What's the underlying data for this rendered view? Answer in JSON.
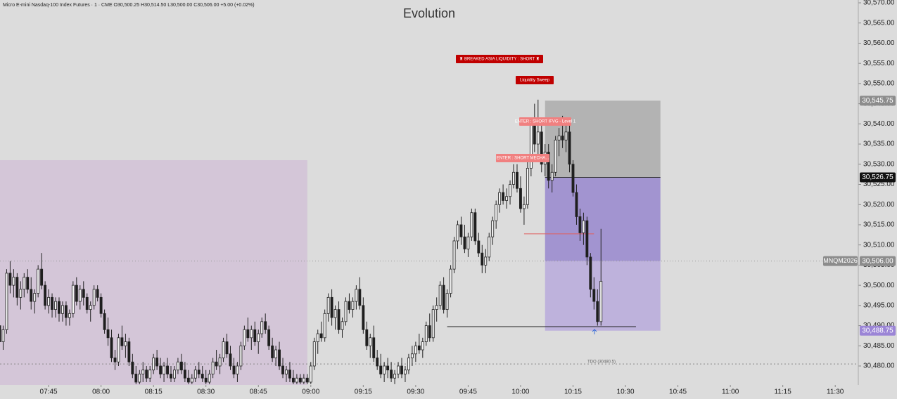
{
  "header": "Micro E-mini Nasdaq-100 Index Futures · 1 · CME  O30,500.25  H30,514.50  L30,500.00  C30,506.00  +5.00 (+0.02%)",
  "chart_data": {
    "type": "candlestick",
    "title": "Evolution",
    "xlim": [
      451.1,
      696.6
    ],
    "xticks": [
      {
        "value": 465,
        "label": "07:45"
      },
      {
        "value": 480,
        "label": "08:00"
      },
      {
        "value": 495,
        "label": "08:15"
      },
      {
        "value": 510,
        "label": "08:30"
      },
      {
        "value": 525,
        "label": "08:45"
      },
      {
        "value": 540,
        "label": "09:00"
      },
      {
        "value": 555,
        "label": "09:15"
      },
      {
        "value": 570,
        "label": "09:30"
      },
      {
        "value": 585,
        "label": "09:45"
      },
      {
        "value": 600,
        "label": "10:00"
      },
      {
        "value": 615,
        "label": "10:15"
      },
      {
        "value": 630,
        "label": "10:30"
      },
      {
        "value": 645,
        "label": "10:45"
      },
      {
        "value": 660,
        "label": "11:00"
      },
      {
        "value": 675,
        "label": "11:15"
      },
      {
        "value": 690,
        "label": "11:30"
      }
    ],
    "ylim": [
      30475.3,
      30570.7
    ],
    "yticks": [
      {
        "value": 30480,
        "label": "30,480.00"
      },
      {
        "value": 30485,
        "label": "30,485.00"
      },
      {
        "value": 30490,
        "label": "30,490.00"
      },
      {
        "value": 30495,
        "label": "30,495.00"
      },
      {
        "value": 30500,
        "label": "30,500.00"
      },
      {
        "value": 30505,
        "label": "30,505.00"
      },
      {
        "value": 30510,
        "label": "30,510.00"
      },
      {
        "value": 30515,
        "label": "30,515.00"
      },
      {
        "value": 30520,
        "label": "30,520.00"
      },
      {
        "value": 30525,
        "label": "30,525.00"
      },
      {
        "value": 30530,
        "label": "30,530.00"
      },
      {
        "value": 30535,
        "label": "30,535.00"
      },
      {
        "value": 30540,
        "label": "30,540.00"
      },
      {
        "value": 30545,
        "label": "30,545.00"
      },
      {
        "value": 30550,
        "label": "30,550.00"
      },
      {
        "value": 30555,
        "label": "30,555.00"
      },
      {
        "value": 30560,
        "label": "30,560.00"
      },
      {
        "value": 30565,
        "label": "30,565.00"
      },
      {
        "value": 30570,
        "label": "30,570.00"
      }
    ],
    "up_color": "#f4f4f4",
    "down_color": "#1e1e1e",
    "x": [
      451,
      452,
      453,
      454,
      455,
      456,
      457,
      458,
      459,
      460,
      461,
      462,
      463,
      464,
      465,
      466,
      467,
      468,
      469,
      470,
      471,
      472,
      473,
      474,
      475,
      476,
      477,
      478,
      479,
      480,
      481,
      482,
      483,
      484,
      485,
      486,
      487,
      488,
      489,
      490,
      491,
      492,
      493,
      494,
      495,
      496,
      497,
      498,
      499,
      500,
      501,
      502,
      503,
      504,
      505,
      506,
      507,
      508,
      509,
      510,
      511,
      512,
      513,
      514,
      515,
      516,
      517,
      518,
      519,
      520,
      521,
      522,
      523,
      524,
      525,
      526,
      527,
      528,
      529,
      530,
      531,
      532,
      533,
      534,
      535,
      536,
      537,
      538,
      539,
      540,
      541,
      542,
      543,
      544,
      545,
      546,
      547,
      548,
      549,
      550,
      551,
      552,
      553,
      554,
      555,
      556,
      557,
      558,
      559,
      560,
      561,
      562,
      563,
      564,
      565,
      566,
      567,
      568,
      569,
      570,
      571,
      572,
      573,
      574,
      575,
      576,
      577,
      578,
      579,
      580,
      581,
      582,
      583,
      584,
      585,
      586,
      587,
      588,
      589,
      590,
      591,
      592,
      593,
      594,
      595,
      596,
      597,
      598,
      599,
      600,
      601,
      602,
      603,
      604,
      605,
      606,
      607,
      608,
      609,
      610,
      611,
      612,
      613,
      614,
      615,
      616,
      617,
      618,
      619,
      620,
      621,
      622,
      623
    ],
    "ohlc": [
      [
        30490,
        30492,
        30485,
        30486
      ],
      [
        30486,
        30490,
        30484,
        30489
      ],
      [
        30489,
        30504,
        30488,
        30503
      ],
      [
        30503,
        30506,
        30498,
        30500
      ],
      [
        30500,
        30504,
        30497,
        30502
      ],
      [
        30502,
        30503,
        30495,
        30497
      ],
      [
        30497,
        30501,
        30494,
        30499
      ],
      [
        30499,
        30503,
        30497,
        30502
      ],
      [
        30502,
        30504,
        30498,
        30499
      ],
      [
        30499,
        30502,
        30494,
        30496
      ],
      [
        30496,
        30499,
        30493,
        30498
      ],
      [
        30498,
        30505,
        30497,
        30504
      ],
      [
        30504,
        30508,
        30499,
        30500
      ],
      [
        30500,
        30501,
        30494,
        30495
      ],
      [
        30495,
        30499,
        30493,
        30497
      ],
      [
        30497,
        30498,
        30492,
        30494
      ],
      [
        30494,
        30497,
        30492,
        30496
      ],
      [
        30496,
        30497,
        30491,
        30493
      ],
      [
        30493,
        30496,
        30491,
        30495
      ],
      [
        30495,
        30496,
        30490,
        30492
      ],
      [
        30492,
        30494,
        30490,
        30493
      ],
      [
        30493,
        30501,
        30492,
        30500
      ],
      [
        30500,
        30502,
        30495,
        30496
      ],
      [
        30496,
        30500,
        30494,
        30499
      ],
      [
        30499,
        30501,
        30495,
        30497
      ],
      [
        30497,
        30498,
        30493,
        30494
      ],
      [
        30494,
        30496,
        30491,
        30495
      ],
      [
        30495,
        30500,
        30494,
        30499
      ],
      [
        30499,
        30500,
        30496,
        30497
      ],
      [
        30497,
        30498,
        30492,
        30493
      ],
      [
        30493,
        30494,
        30488,
        30489
      ],
      [
        30489,
        30492,
        30485,
        30487
      ],
      [
        30487,
        30489,
        30481,
        30482
      ],
      [
        30482,
        30484,
        30479,
        30481
      ],
      [
        30481,
        30488,
        30480,
        30487
      ],
      [
        30487,
        30490,
        30484,
        30485
      ],
      [
        30485,
        30488,
        30482,
        30486
      ],
      [
        30486,
        30487,
        30480,
        30481
      ],
      [
        30481,
        30483,
        30477,
        30478
      ],
      [
        30478,
        30480,
        30475.5,
        30476
      ],
      [
        30476,
        30479,
        30475.5,
        30478
      ],
      [
        30478,
        30481,
        30476,
        30479
      ],
      [
        30479,
        30480,
        30476,
        30477
      ],
      [
        30477,
        30480,
        30476,
        30479
      ],
      [
        30479,
        30483,
        30478,
        30482
      ],
      [
        30482,
        30484,
        30479,
        30480
      ],
      [
        30480,
        30482,
        30477,
        30478
      ],
      [
        30478,
        30481,
        30476,
        30480
      ],
      [
        30480,
        30482,
        30477,
        30478
      ],
      [
        30478,
        30480,
        30476,
        30477
      ],
      [
        30477,
        30480,
        30476,
        30479
      ],
      [
        30479,
        30482,
        30478,
        30481
      ],
      [
        30481,
        30483,
        30478,
        30479
      ],
      [
        30479,
        30481,
        30476,
        30477
      ],
      [
        30477,
        30479,
        30475.5,
        30476
      ],
      [
        30476,
        30478,
        30475.5,
        30477
      ],
      [
        30477,
        30480,
        30476,
        30479
      ],
      [
        30479,
        30481,
        30477,
        30478
      ],
      [
        30478,
        30480,
        30476,
        30477
      ],
      [
        30477,
        30479,
        30475.5,
        30476
      ],
      [
        30476,
        30479,
        30475.5,
        30478
      ],
      [
        30478,
        30482,
        30477,
        30481
      ],
      [
        30481,
        30484,
        30479,
        30480
      ],
      [
        30480,
        30483,
        30478,
        30482
      ],
      [
        30482,
        30487,
        30481,
        30486
      ],
      [
        30486,
        30488,
        30482,
        30483
      ],
      [
        30483,
        30485,
        30479,
        30480
      ],
      [
        30480,
        30482,
        30477,
        30478
      ],
      [
        30478,
        30481,
        30476,
        30480
      ],
      [
        30480,
        30486,
        30479,
        30485
      ],
      [
        30485,
        30490,
        30484,
        30489
      ],
      [
        30489,
        30492,
        30486,
        30487
      ],
      [
        30487,
        30490,
        30484,
        30489
      ],
      [
        30489,
        30491,
        30485,
        30486
      ],
      [
        30486,
        30489,
        30483,
        30488
      ],
      [
        30488,
        30492,
        30487,
        30491
      ],
      [
        30491,
        30493,
        30488,
        30489
      ],
      [
        30489,
        30490,
        30484,
        30485
      ],
      [
        30485,
        30487,
        30481,
        30482
      ],
      [
        30482,
        30485,
        30480,
        30484
      ],
      [
        30484,
        30486,
        30479,
        30480
      ],
      [
        30480,
        30482,
        30477,
        30478
      ],
      [
        30478,
        30480,
        30476,
        30479
      ],
      [
        30479,
        30481,
        30476,
        30477
      ],
      [
        30477,
        30479,
        30475.5,
        30476
      ],
      [
        30476,
        30478,
        30475.5,
        30477
      ],
      [
        30477,
        30478,
        30475.5,
        30476
      ],
      [
        30476,
        30478,
        30475.5,
        30477
      ],
      [
        30477,
        30478,
        30475.5,
        30476
      ],
      [
        30476,
        30481,
        30475.5,
        30480
      ],
      [
        30480,
        30487,
        30479,
        30486
      ],
      [
        30486,
        30489,
        30483,
        30488
      ],
      [
        30488,
        30491,
        30486,
        30487
      ],
      [
        30487,
        30494,
        30486,
        30493
      ],
      [
        30493,
        30498,
        30491,
        30497
      ],
      [
        30497,
        30499,
        30490,
        30492
      ],
      [
        30492,
        30495,
        30489,
        30494
      ],
      [
        30494,
        30496,
        30488,
        30489
      ],
      [
        30489,
        30492,
        30487,
        30491
      ],
      [
        30491,
        30497,
        30490,
        30496
      ],
      [
        30496,
        30498,
        30493,
        30494
      ],
      [
        30494,
        30497,
        30492,
        30496
      ],
      [
        30496,
        30500,
        30494,
        30499
      ],
      [
        30499,
        30502,
        30494,
        30495
      ],
      [
        30495,
        30497,
        30488,
        30489
      ],
      [
        30489,
        30491,
        30484,
        30485
      ],
      [
        30485,
        30488,
        30482,
        30487
      ],
      [
        30487,
        30490,
        30481,
        30482
      ],
      [
        30482,
        30484,
        30479,
        30480
      ],
      [
        30480,
        30483,
        30477,
        30478
      ],
      [
        30478,
        30481,
        30476,
        30480
      ],
      [
        30480,
        30482,
        30477,
        30479
      ],
      [
        30479,
        30481,
        30476,
        30477
      ],
      [
        30477,
        30479,
        30475.5,
        30478
      ],
      [
        30478,
        30481,
        30477,
        30480
      ],
      [
        30480,
        30482,
        30477,
        30478
      ],
      [
        30478,
        30480,
        30476,
        30479
      ],
      [
        30479,
        30483,
        30478,
        30482
      ],
      [
        30482,
        30485,
        30480,
        30483
      ],
      [
        30483,
        30486,
        30481,
        30485
      ],
      [
        30485,
        30488,
        30483,
        30484
      ],
      [
        30484,
        30487,
        30482,
        30486
      ],
      [
        30486,
        30491,
        30485,
        30490
      ],
      [
        30490,
        30493,
        30486,
        30487
      ],
      [
        30487,
        30495,
        30486,
        30494
      ],
      [
        30494,
        30497,
        30491,
        30495
      ],
      [
        30495,
        30501,
        30494,
        30500
      ],
      [
        30500,
        30502,
        30493,
        30494
      ],
      [
        30494,
        30499,
        30492,
        30498
      ],
      [
        30498,
        30505,
        30497,
        30504
      ],
      [
        30504,
        30512,
        30503,
        30511
      ],
      [
        30511,
        30516,
        30509,
        30515
      ],
      [
        30515,
        30517,
        30510,
        30512
      ],
      [
        30512,
        30515,
        30508,
        30509
      ],
      [
        30509,
        30513,
        30507,
        30512
      ],
      [
        30512,
        30519,
        30511,
        30518
      ],
      [
        30518,
        30519,
        30510,
        30511
      ],
      [
        30511,
        30513,
        30507,
        30508
      ],
      [
        30508,
        30510,
        30503,
        30505
      ],
      [
        30505,
        30509,
        30503,
        30507
      ],
      [
        30507,
        30513,
        30506,
        30512
      ],
      [
        30512,
        30517,
        30510,
        30516
      ],
      [
        30516,
        30521,
        30514,
        30520
      ],
      [
        30520,
        30524,
        30518,
        30523
      ],
      [
        30523,
        30525,
        30520,
        30521
      ],
      [
        30521,
        30524,
        30519,
        30522
      ],
      [
        30522,
        30526,
        30520,
        30525
      ],
      [
        30525,
        30530,
        30524,
        30528
      ],
      [
        30528,
        30530,
        30523,
        30524
      ],
      [
        30524,
        30527,
        30518,
        30519
      ],
      [
        30519,
        30522,
        30515,
        30520
      ],
      [
        30520,
        30531,
        30519,
        30529
      ],
      [
        30529,
        30541,
        30527,
        30540
      ],
      [
        30540,
        30545,
        30533,
        30535
      ],
      [
        30535,
        30546,
        30532,
        30538
      ],
      [
        30538,
        30540,
        30528,
        30530
      ],
      [
        30530,
        30535,
        30527,
        30533
      ],
      [
        30533,
        30535,
        30524,
        30526
      ],
      [
        30526,
        30530,
        30523,
        30528
      ],
      [
        30528,
        30537,
        30527,
        30536
      ],
      [
        30536,
        30539,
        30532,
        30537
      ],
      [
        30537,
        30542,
        30534,
        30536
      ],
      [
        30536,
        30540,
        30533,
        30538
      ],
      [
        30538,
        30540,
        30528,
        30530
      ],
      [
        30530,
        30531,
        30522,
        30523
      ],
      [
        30523,
        30525,
        30515,
        30517
      ],
      [
        30517,
        30519,
        30511,
        30513
      ],
      [
        30513,
        30518,
        30510,
        30516
      ],
      [
        30516,
        30517,
        30505,
        30507
      ],
      [
        30507,
        30508,
        30497,
        30499
      ],
      [
        30499,
        30502,
        30494,
        30496
      ],
      [
        30496,
        30499,
        30490,
        30491
      ],
      [
        30491,
        30514,
        30490,
        30501
      ]
    ],
    "session_box": {
      "x": [
        451.1,
        539
      ],
      "y": [
        30475.3,
        30531
      ],
      "color": "#d4c6d8"
    },
    "position": {
      "x": [
        607,
        640
      ],
      "stop": 30545.75,
      "entry": 30526.75,
      "current": 30506,
      "target": 30488.75,
      "stop_color": "#b3b3b3",
      "target_color": "#a294d0",
      "light_color": "#beb2dc"
    },
    "lines": [
      {
        "x": [
          579,
          633
        ],
        "value": 30489.75,
        "color": "#222222"
      },
      {
        "x": [
          601,
          621
        ],
        "value": 30512.75,
        "color": "#e06060"
      }
    ],
    "tdo": {
      "value": 30480.5,
      "label": "TDO (30480.5)"
    },
    "price_tags": [
      {
        "value": 30545.75,
        "label": "30,545.75",
        "color": "#8c8c8c"
      },
      {
        "value": 30526.75,
        "label": "30,526.75",
        "color": "#111111"
      },
      {
        "value": 30506,
        "label": "30,506.00",
        "color": "#8c8c8c"
      },
      {
        "value": 30488.75,
        "label": "30,488.75",
        "color": "#9b85d6"
      }
    ],
    "symbol_tag": "MNQM2026",
    "notes": [
      {
        "text": "♜ BREAKED ASIA LIQUIDITY : SHORT ♜",
        "color": "#c00000"
      },
      {
        "text": "Liquidity Sweep",
        "color": "#c00000"
      },
      {
        "text": "ENTER : SHORT IFVG - Level 1",
        "color": "#f08080"
      },
      {
        "text": "ENTER : SHORT MECHA...",
        "color": "#f08080"
      }
    ]
  }
}
